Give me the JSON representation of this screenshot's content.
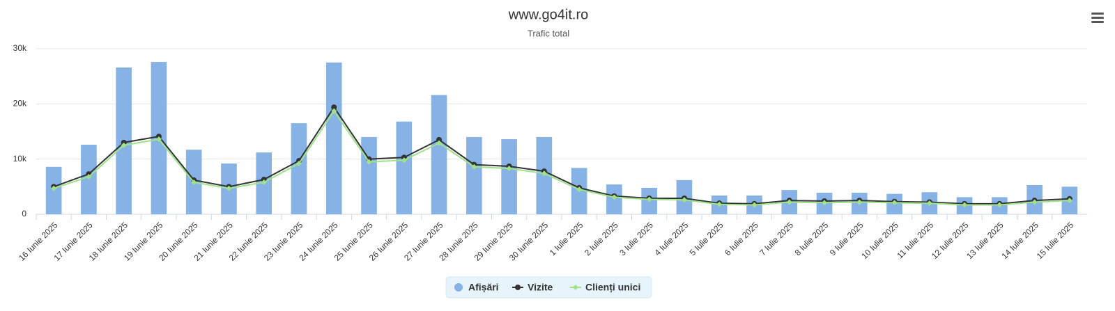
{
  "chart_data": {
    "type": "combo",
    "title": "www.go4it.ro",
    "subtitle": "Trafic total",
    "categories": [
      "16 Iunie 2025",
      "17 Iunie 2025",
      "18 Iunie 2025",
      "19 Iunie 2025",
      "20 Iunie 2025",
      "21 Iunie 2025",
      "22 Iunie 2025",
      "23 Iunie 2025",
      "24 Iunie 2025",
      "25 Iunie 2025",
      "26 Iunie 2025",
      "27 Iunie 2025",
      "28 Iunie 2025",
      "29 Iunie 2025",
      "30 Iunie 2025",
      "1 Iulie 2025",
      "2 Iulie 2025",
      "3 Iulie 2025",
      "4 Iulie 2025",
      "5 Iulie 2025",
      "6 Iulie 2025",
      "7 Iulie 2025",
      "8 Iulie 2025",
      "9 Iulie 2025",
      "10 Iulie 2025",
      "11 Iulie 2025",
      "12 Iulie 2025",
      "13 Iulie 2025",
      "14 Iulie 2025",
      "15 Iulie 2025"
    ],
    "series": [
      {
        "name": "Afișări",
        "type": "column",
        "color": "#86b2e6",
        "values": [
          8600,
          12600,
          26600,
          27600,
          11700,
          9200,
          11200,
          16500,
          27500,
          14000,
          16800,
          21600,
          14000,
          13600,
          14000,
          8400,
          5400,
          4800,
          6200,
          3400,
          3400,
          4400,
          3900,
          3900,
          3700,
          4000,
          3100,
          3100,
          5300,
          5000
        ]
      },
      {
        "name": "Vizite",
        "type": "line",
        "marker": "circle",
        "color": "#333333",
        "values": [
          5000,
          7300,
          13000,
          14100,
          6200,
          5000,
          6300,
          9700,
          19400,
          10000,
          10300,
          13500,
          9000,
          8700,
          7800,
          4800,
          3300,
          2900,
          2900,
          2000,
          1900,
          2500,
          2400,
          2500,
          2300,
          2200,
          1900,
          1900,
          2500,
          2800
        ]
      },
      {
        "name": "Clienți unici",
        "type": "line",
        "marker": "diamond",
        "color": "#9ee28a",
        "values": [
          4700,
          6800,
          12500,
          13600,
          5800,
          4700,
          5800,
          9200,
          18700,
          9500,
          9800,
          12900,
          8600,
          8300,
          7400,
          4500,
          3100,
          2700,
          2600,
          1800,
          1700,
          2200,
          2100,
          2200,
          2100,
          2000,
          1700,
          1700,
          2200,
          2500
        ]
      }
    ],
    "ylim": [
      0,
      30000
    ],
    "yticks": [
      0,
      {
        "value": 10000,
        "label": "10k"
      },
      {
        "value": 20000,
        "label": "20k"
      },
      {
        "value": 30000,
        "label": "30k"
      }
    ],
    "grid": true
  }
}
